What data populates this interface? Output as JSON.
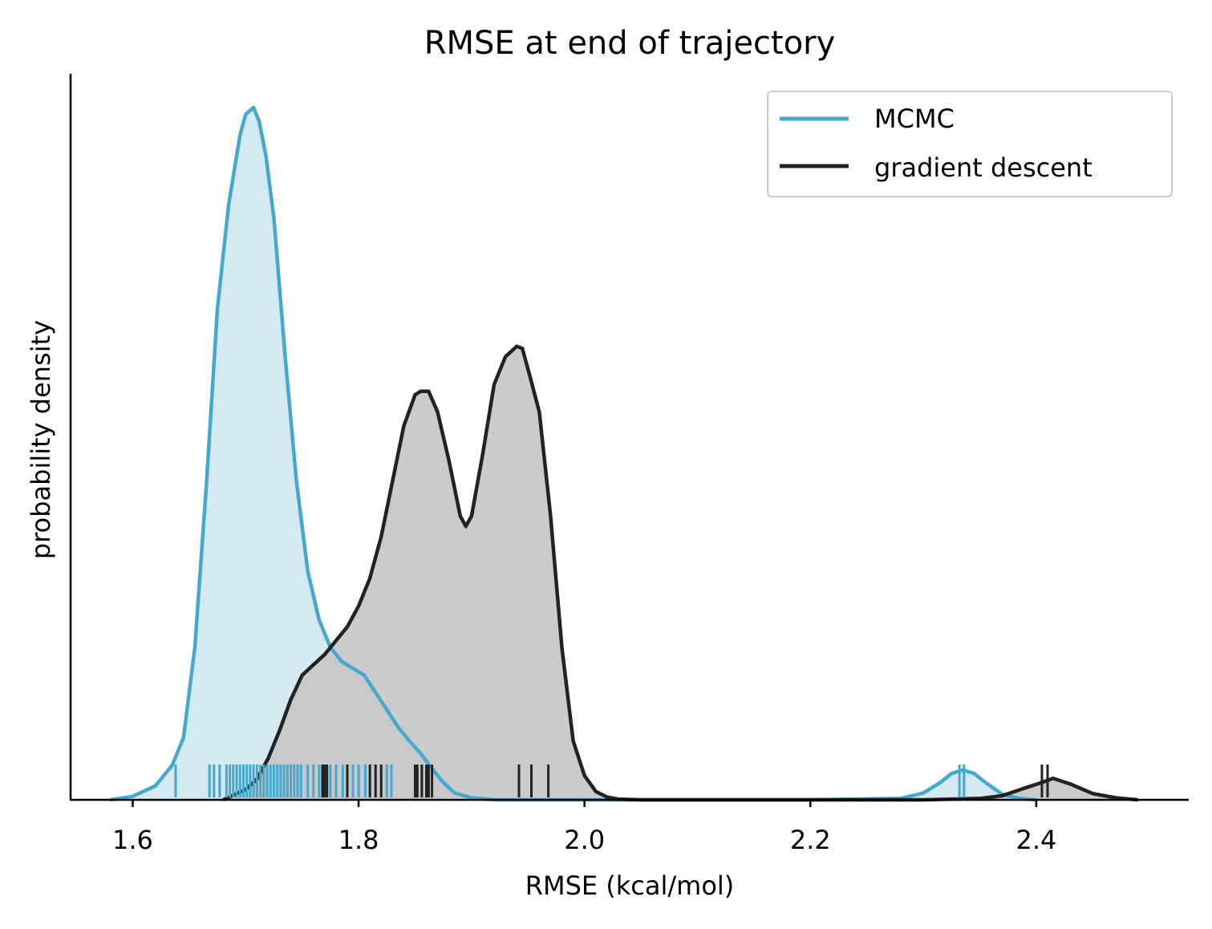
{
  "chart_data": {
    "type": "area",
    "title": "RMSE at end of trajectory",
    "xlabel": "RMSE (kcal/mol)",
    "ylabel": "probability density",
    "xlim": [
      1.545,
      2.535
    ],
    "ylim": [
      0,
      1.05
    ],
    "xticks": [
      1.6,
      1.8,
      2.0,
      2.2,
      2.4
    ],
    "xtick_labels": [
      "1.6",
      "1.8",
      "2.0",
      "2.2",
      "2.4"
    ],
    "show_y_ticks": false,
    "grid": false,
    "legend_position": "top-right",
    "series": [
      {
        "name": "MCMC",
        "color": "#45a8cc",
        "fill": "#d0e7f1",
        "x": [
          1.58,
          1.6,
          1.62,
          1.635,
          1.645,
          1.655,
          1.665,
          1.675,
          1.685,
          1.695,
          1.7,
          1.707,
          1.712,
          1.718,
          1.725,
          1.735,
          1.745,
          1.755,
          1.765,
          1.775,
          1.785,
          1.795,
          1.805,
          1.815,
          1.825,
          1.835,
          1.845,
          1.855,
          1.865,
          1.875,
          1.885,
          1.9,
          1.92,
          1.95,
          2.0,
          2.1,
          2.2,
          2.28,
          2.3,
          2.315,
          2.325,
          2.335,
          2.345,
          2.355,
          2.37,
          2.385,
          2.4
        ],
        "y": [
          0.0,
          0.005,
          0.02,
          0.05,
          0.09,
          0.22,
          0.45,
          0.71,
          0.86,
          0.96,
          0.99,
          1.0,
          0.98,
          0.93,
          0.84,
          0.64,
          0.46,
          0.33,
          0.26,
          0.22,
          0.2,
          0.19,
          0.18,
          0.155,
          0.13,
          0.105,
          0.085,
          0.067,
          0.045,
          0.025,
          0.01,
          0.003,
          0.0,
          0.0,
          0.0,
          0.0,
          0.0,
          0.002,
          0.01,
          0.025,
          0.038,
          0.043,
          0.038,
          0.025,
          0.008,
          0.002,
          0.0
        ],
        "rug": [
          1.638,
          1.668,
          1.672,
          1.677,
          1.683,
          1.686,
          1.689,
          1.692,
          1.695,
          1.698,
          1.701,
          1.704,
          1.707,
          1.71,
          1.713,
          1.716,
          1.719,
          1.722,
          1.725,
          1.728,
          1.731,
          1.734,
          1.737,
          1.74,
          1.743,
          1.746,
          1.749,
          1.755,
          1.76,
          1.765,
          1.77,
          1.775,
          1.78,
          1.786,
          1.79,
          1.795,
          1.8,
          1.806,
          1.81,
          1.815,
          1.82,
          1.825,
          1.829,
          2.332,
          2.336
        ]
      },
      {
        "name": "gradient descent",
        "color": "#222222",
        "fill": "#c5c5c5",
        "x": [
          1.68,
          1.7,
          1.71,
          1.72,
          1.73,
          1.74,
          1.75,
          1.76,
          1.77,
          1.78,
          1.79,
          1.8,
          1.81,
          1.82,
          1.83,
          1.84,
          1.85,
          1.855,
          1.862,
          1.87,
          1.88,
          1.89,
          1.895,
          1.9,
          1.91,
          1.92,
          1.93,
          1.94,
          1.945,
          1.952,
          1.96,
          1.97,
          1.98,
          1.99,
          2.0,
          2.01,
          2.02,
          2.03,
          2.05,
          2.1,
          2.2,
          2.3,
          2.35,
          2.37,
          2.39,
          2.405,
          2.415,
          2.43,
          2.45,
          2.47,
          2.49
        ],
        "y": [
          0.0,
          0.015,
          0.03,
          0.06,
          0.1,
          0.145,
          0.18,
          0.195,
          0.21,
          0.23,
          0.25,
          0.28,
          0.32,
          0.38,
          0.46,
          0.54,
          0.585,
          0.59,
          0.59,
          0.56,
          0.49,
          0.41,
          0.395,
          0.41,
          0.5,
          0.6,
          0.64,
          0.655,
          0.652,
          0.61,
          0.56,
          0.41,
          0.22,
          0.085,
          0.035,
          0.012,
          0.004,
          0.001,
          0.0,
          0.0,
          0.0,
          0.0,
          0.002,
          0.006,
          0.017,
          0.025,
          0.031,
          0.023,
          0.009,
          0.003,
          0.0
        ],
        "rug": [
          1.768,
          1.77,
          1.772,
          1.79,
          1.81,
          1.815,
          1.82,
          1.85,
          1.852,
          1.856,
          1.86,
          1.862,
          1.865,
          1.942,
          1.953,
          1.968,
          2.405,
          2.41
        ]
      }
    ]
  }
}
